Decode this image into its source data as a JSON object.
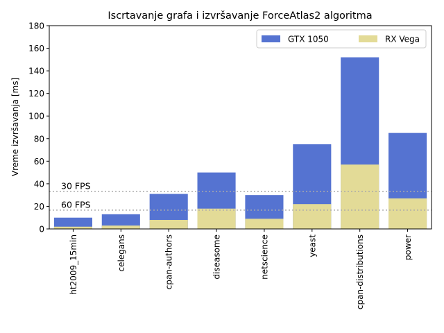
{
  "chart_data": {
    "type": "bar",
    "title": "Iscrtavanje grafa i izvršavanje ForceAtlas2 algoritma",
    "xlabel": "",
    "ylabel": "Vreme izvršavanja [ms]",
    "ylim": [
      0,
      180
    ],
    "yticks": [
      0,
      20,
      40,
      60,
      80,
      100,
      120,
      140,
      160,
      180
    ],
    "grid": false,
    "legend_position": "top-right",
    "categories": [
      "ht2009_15min",
      "celegans",
      "cpan-authors",
      "diseasome",
      "netscience",
      "yeast",
      "cpan-distributions",
      "power"
    ],
    "series": [
      {
        "name": "GTX 1050",
        "color": "#5573d1",
        "values": [
          10,
          13,
          31,
          50,
          30,
          75,
          152,
          85
        ]
      },
      {
        "name": "RX Vega",
        "color": "#e3db97",
        "values": [
          2,
          3,
          8,
          18,
          9,
          22,
          57,
          27
        ]
      }
    ],
    "reference_lines": [
      {
        "label": "30 FPS",
        "value": 33.3,
        "color": "#aaaaaa"
      },
      {
        "label": "60 FPS",
        "value": 16.7,
        "color": "#aaaaaa"
      }
    ]
  }
}
